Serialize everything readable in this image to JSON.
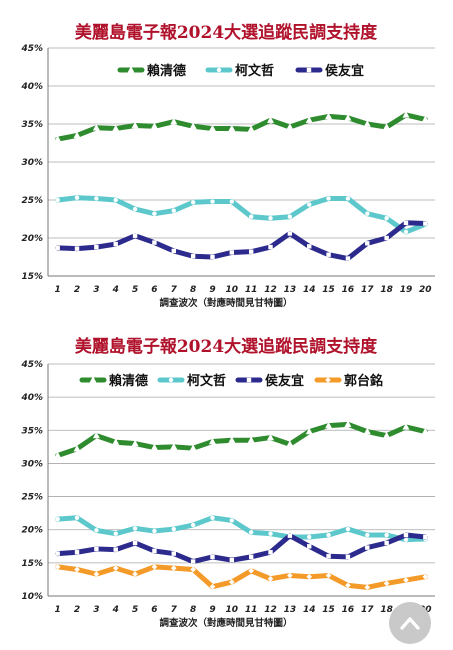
{
  "chart_data": [
    {
      "type": "line",
      "title": "美麗島電子報2024大選追蹤民調支持度",
      "xlabel": "調查波次（對應時間見甘特圖）",
      "ylabel": "",
      "x": [
        1,
        2,
        3,
        4,
        5,
        6,
        7,
        8,
        9,
        10,
        11,
        12,
        13,
        14,
        15,
        16,
        17,
        18,
        19,
        20
      ],
      "ylim": [
        15,
        45
      ],
      "yticks": [
        "15%",
        "20%",
        "25%",
        "30%",
        "35%",
        "40%",
        "45%"
      ],
      "grid": true,
      "legend_position": "top",
      "series": [
        {
          "name": "賴清德",
          "color": "#2e8b2e",
          "marker": "triangle",
          "values": [
            33.0,
            33.5,
            34.5,
            34.4,
            34.8,
            34.7,
            35.3,
            34.7,
            34.4,
            34.4,
            34.3,
            35.5,
            34.6,
            35.5,
            36.0,
            35.8,
            35.0,
            34.6,
            36.2,
            35.6
          ]
        },
        {
          "name": "柯文哲",
          "color": "#5cc8cc",
          "marker": "circle",
          "values": [
            25.0,
            25.3,
            25.2,
            25.0,
            23.8,
            23.2,
            23.6,
            24.7,
            24.8,
            24.8,
            22.8,
            22.6,
            22.8,
            24.4,
            25.2,
            25.2,
            23.2,
            22.6,
            20.8,
            21.8
          ]
        },
        {
          "name": "侯友宜",
          "color": "#2c2a8c",
          "marker": "square",
          "values": [
            18.7,
            18.6,
            18.8,
            19.2,
            20.3,
            19.4,
            18.3,
            17.6,
            17.5,
            18.1,
            18.2,
            18.8,
            20.6,
            18.9,
            17.8,
            17.3,
            19.3,
            20.0,
            22.0,
            21.9
          ]
        }
      ]
    },
    {
      "type": "line",
      "title": "美麗島電子報2024大選追蹤民調支持度",
      "xlabel": "調查波次（對應時間見甘特圖）",
      "ylabel": "",
      "x": [
        1,
        2,
        3,
        4,
        5,
        6,
        7,
        8,
        9,
        10,
        11,
        12,
        13,
        14,
        15,
        16,
        17,
        18,
        19,
        20
      ],
      "ylim": [
        10,
        45
      ],
      "yticks": [
        "10%",
        "15%",
        "20%",
        "25%",
        "30%",
        "35%",
        "40%",
        "45%"
      ],
      "grid": true,
      "legend_position": "top",
      "series": [
        {
          "name": "賴清德",
          "color": "#2e8b2e",
          "marker": "triangle",
          "values": [
            31.2,
            32.2,
            34.2,
            33.2,
            33.0,
            32.4,
            32.5,
            32.3,
            33.3,
            33.5,
            33.5,
            33.9,
            32.9,
            34.8,
            35.7,
            35.9,
            34.8,
            34.2,
            35.5,
            34.8
          ]
        },
        {
          "name": "柯文哲",
          "color": "#5cc8cc",
          "marker": "circle",
          "values": [
            21.6,
            21.8,
            19.9,
            19.4,
            20.2,
            19.8,
            20.1,
            20.7,
            21.8,
            21.4,
            19.6,
            19.4,
            18.9,
            18.9,
            19.2,
            20.1,
            19.2,
            19.2,
            18.5,
            18.6
          ]
        },
        {
          "name": "侯友宜",
          "color": "#2c2a8c",
          "marker": "square",
          "values": [
            16.4,
            16.6,
            17.1,
            17.0,
            18.0,
            16.8,
            16.4,
            15.2,
            15.9,
            15.4,
            15.9,
            16.6,
            19.1,
            17.5,
            16.0,
            15.9,
            17.3,
            18.0,
            19.2,
            18.9
          ]
        },
        {
          "name": "郭台銘",
          "color": "#f39a28",
          "marker": "diamond",
          "values": [
            14.4,
            14.0,
            13.3,
            14.2,
            13.3,
            14.4,
            14.2,
            14.0,
            11.4,
            12.1,
            13.8,
            12.6,
            13.1,
            12.9,
            13.1,
            11.6,
            11.3,
            11.9,
            12.4,
            12.9
          ]
        }
      ]
    }
  ]
}
